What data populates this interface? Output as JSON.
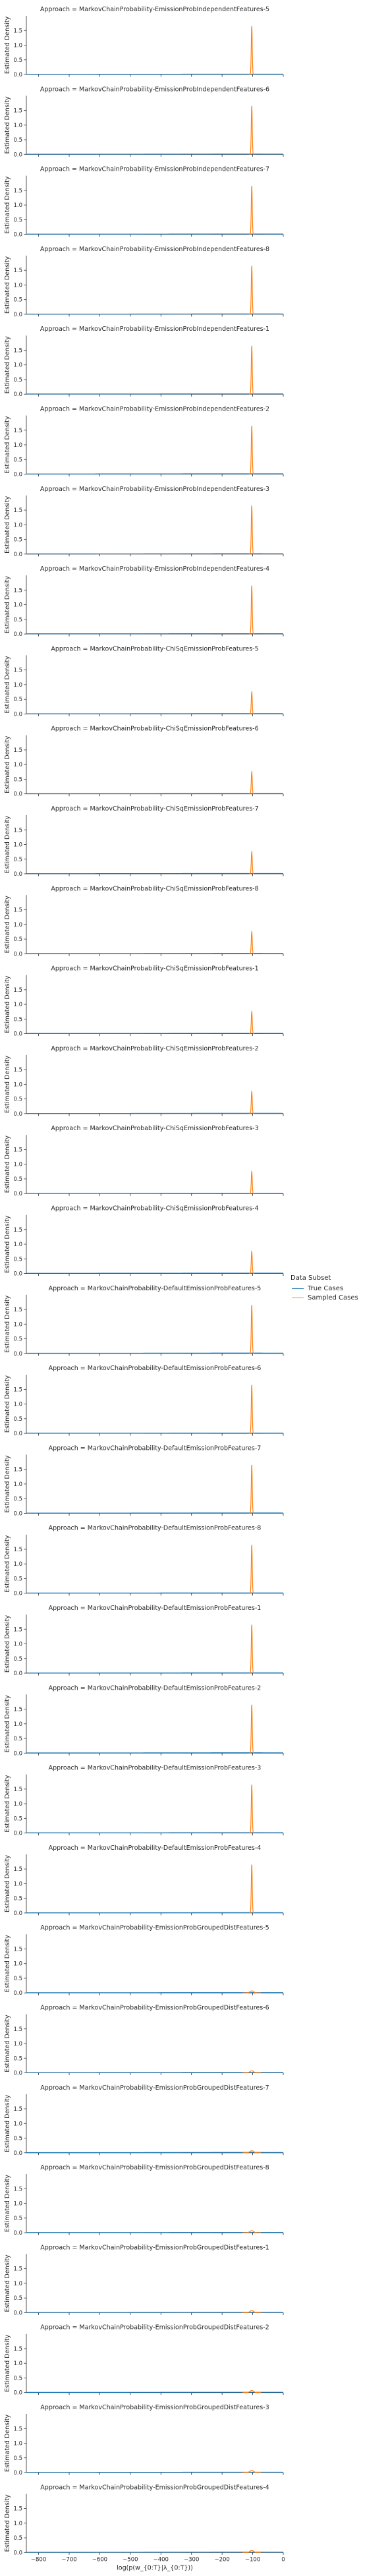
{
  "figure": {
    "x_axis_label": "log(p(w_{0:T}|λ_{0:T}))",
    "y_axis_label": "Estimated Density",
    "legend": {
      "title": "Data Subset",
      "entries": [
        {
          "label": "True Cases",
          "color": "#1f77b4"
        },
        {
          "label": "Sampled Cases",
          "color": "#ff7f0e"
        }
      ]
    }
  },
  "chart_data": {
    "type": "area",
    "facet_variable": "Approach",
    "xlim": [
      -840,
      0
    ],
    "ylim": [
      0,
      2.0
    ],
    "x_ticks": [
      -800,
      -700,
      -600,
      -500,
      -400,
      -300,
      -200,
      -100,
      0
    ],
    "y_ticks": [
      0.0,
      0.5,
      1.0,
      1.5
    ],
    "legend_placement": "center-right",
    "grid": false,
    "series": [
      "True Cases",
      "Sampled Cases"
    ],
    "facets": [
      {
        "title": "Approach = MarkovChainProbability-EmissionProbIndependentFeatures-5",
        "peak_x": -103,
        "sampled_peak": 1.65,
        "true_peak": 0.012
      },
      {
        "title": "Approach = MarkovChainProbability-EmissionProbIndependentFeatures-6",
        "peak_x": -103,
        "sampled_peak": 1.65,
        "true_peak": 0.012
      },
      {
        "title": "Approach = MarkovChainProbability-EmissionProbIndependentFeatures-7",
        "peak_x": -103,
        "sampled_peak": 1.65,
        "true_peak": 0.012
      },
      {
        "title": "Approach = MarkovChainProbability-EmissionProbIndependentFeatures-8",
        "peak_x": -103,
        "sampled_peak": 1.65,
        "true_peak": 0.012
      },
      {
        "title": "Approach = MarkovChainProbability-EmissionProbIndependentFeatures-1",
        "peak_x": -103,
        "sampled_peak": 1.65,
        "true_peak": 0.012
      },
      {
        "title": "Approach = MarkovChainProbability-EmissionProbIndependentFeatures-2",
        "peak_x": -103,
        "sampled_peak": 1.65,
        "true_peak": 0.012
      },
      {
        "title": "Approach = MarkovChainProbability-EmissionProbIndependentFeatures-3",
        "peak_x": -103,
        "sampled_peak": 1.65,
        "true_peak": 0.012
      },
      {
        "title": "Approach = MarkovChainProbability-EmissionProbIndependentFeatures-4",
        "peak_x": -103,
        "sampled_peak": 1.65,
        "true_peak": 0.012
      },
      {
        "title": "Approach = MarkovChainProbability-ChiSqEmissionProbFeatures-5",
        "peak_x": -103,
        "sampled_peak": 0.75,
        "true_peak": 0.012
      },
      {
        "title": "Approach = MarkovChainProbability-ChiSqEmissionProbFeatures-6",
        "peak_x": -103,
        "sampled_peak": 0.75,
        "true_peak": 0.012
      },
      {
        "title": "Approach = MarkovChainProbability-ChiSqEmissionProbFeatures-7",
        "peak_x": -103,
        "sampled_peak": 0.75,
        "true_peak": 0.012
      },
      {
        "title": "Approach = MarkovChainProbability-ChiSqEmissionProbFeatures-8",
        "peak_x": -103,
        "sampled_peak": 0.75,
        "true_peak": 0.012
      },
      {
        "title": "Approach = MarkovChainProbability-ChiSqEmissionProbFeatures-1",
        "peak_x": -103,
        "sampled_peak": 0.75,
        "true_peak": 0.012
      },
      {
        "title": "Approach = MarkovChainProbability-ChiSqEmissionProbFeatures-2",
        "peak_x": -103,
        "sampled_peak": 0.75,
        "true_peak": 0.012
      },
      {
        "title": "Approach = MarkovChainProbability-ChiSqEmissionProbFeatures-3",
        "peak_x": -103,
        "sampled_peak": 0.75,
        "true_peak": 0.012
      },
      {
        "title": "Approach = MarkovChainProbability-ChiSqEmissionProbFeatures-4",
        "peak_x": -103,
        "sampled_peak": 0.75,
        "true_peak": 0.012
      },
      {
        "title": "Approach = MarkovChainProbability-DefaultEmissionProbFeatures-5",
        "peak_x": -103,
        "sampled_peak": 1.65,
        "true_peak": 0.012
      },
      {
        "title": "Approach = MarkovChainProbability-DefaultEmissionProbFeatures-6",
        "peak_x": -103,
        "sampled_peak": 1.65,
        "true_peak": 0.012
      },
      {
        "title": "Approach = MarkovChainProbability-DefaultEmissionProbFeatures-7",
        "peak_x": -103,
        "sampled_peak": 1.65,
        "true_peak": 0.012
      },
      {
        "title": "Approach = MarkovChainProbability-DefaultEmissionProbFeatures-8",
        "peak_x": -103,
        "sampled_peak": 1.65,
        "true_peak": 0.012
      },
      {
        "title": "Approach = MarkovChainProbability-DefaultEmissionProbFeatures-1",
        "peak_x": -103,
        "sampled_peak": 1.65,
        "true_peak": 0.012
      },
      {
        "title": "Approach = MarkovChainProbability-DefaultEmissionProbFeatures-2",
        "peak_x": -103,
        "sampled_peak": 1.65,
        "true_peak": 0.012
      },
      {
        "title": "Approach = MarkovChainProbability-DefaultEmissionProbFeatures-3",
        "peak_x": -103,
        "sampled_peak": 1.65,
        "true_peak": 0.012
      },
      {
        "title": "Approach = MarkovChainProbability-DefaultEmissionProbFeatures-4",
        "peak_x": -103,
        "sampled_peak": 1.65,
        "true_peak": 0.012
      },
      {
        "title": "Approach = MarkovChainProbability-EmissionProbGroupedDistFeatures-5",
        "peak_x": -103,
        "sampled_peak": 0.07,
        "true_peak": 0.012
      },
      {
        "title": "Approach = MarkovChainProbability-EmissionProbGroupedDistFeatures-6",
        "peak_x": -103,
        "sampled_peak": 0.07,
        "true_peak": 0.012
      },
      {
        "title": "Approach = MarkovChainProbability-EmissionProbGroupedDistFeatures-7",
        "peak_x": -103,
        "sampled_peak": 0.07,
        "true_peak": 0.012
      },
      {
        "title": "Approach = MarkovChainProbability-EmissionProbGroupedDistFeatures-8",
        "peak_x": -103,
        "sampled_peak": 0.07,
        "true_peak": 0.012
      },
      {
        "title": "Approach = MarkovChainProbability-EmissionProbGroupedDistFeatures-1",
        "peak_x": -103,
        "sampled_peak": 0.07,
        "true_peak": 0.012
      },
      {
        "title": "Approach = MarkovChainProbability-EmissionProbGroupedDistFeatures-2",
        "peak_x": -103,
        "sampled_peak": 0.07,
        "true_peak": 0.012
      },
      {
        "title": "Approach = MarkovChainProbability-EmissionProbGroupedDistFeatures-3",
        "peak_x": -103,
        "sampled_peak": 0.07,
        "true_peak": 0.012
      },
      {
        "title": "Approach = MarkovChainProbability-EmissionProbGroupedDistFeatures-4",
        "peak_x": -103,
        "sampled_peak": 0.07,
        "true_peak": 0.012
      }
    ]
  }
}
